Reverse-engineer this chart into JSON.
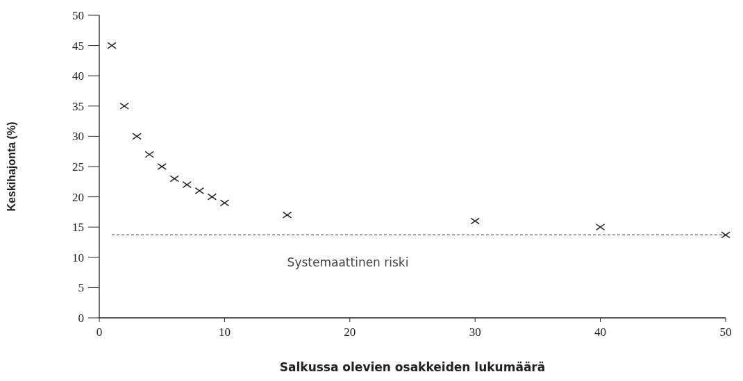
{
  "chart_data": {
    "type": "scatter",
    "xlabel": "Salkussa olevien osakkeiden lukumäärä",
    "ylabel": "Keskihajonta (%)",
    "x": [
      1,
      2,
      3,
      4,
      5,
      6,
      7,
      8,
      9,
      10,
      15,
      30,
      40,
      50
    ],
    "series": [
      {
        "color": "#222222",
        "values": [
          45,
          35,
          30,
          27,
          25,
          23,
          22,
          21,
          20,
          19,
          17,
          16,
          15,
          13.7
        ]
      }
    ],
    "marker": "cross",
    "xlim": [
      0,
      50
    ],
    "ylim": [
      0,
      50
    ],
    "xticks": [
      0,
      10,
      20,
      30,
      40,
      50
    ],
    "yticks": [
      0,
      5,
      10,
      15,
      20,
      25,
      30,
      35,
      40,
      45,
      50
    ],
    "ref_lines": [
      {
        "axis": "y",
        "value": 13.7,
        "label": "Systemaattinen riski",
        "line_style": "dashed",
        "color": "#333333"
      }
    ]
  }
}
